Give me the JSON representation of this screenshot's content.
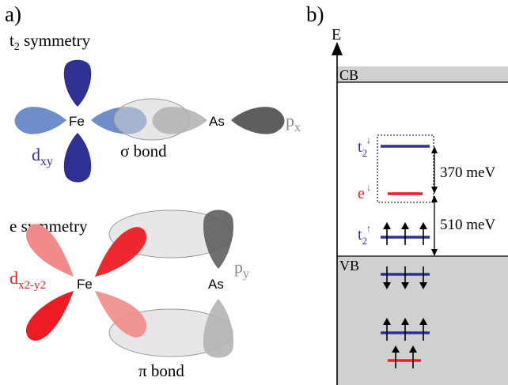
{
  "panel_a": {
    "label": "a)",
    "t2_section": {
      "title_main": "t",
      "title_sub": "2",
      "title_rest": " symmetry",
      "fe_label": "Fe",
      "as_label": "As",
      "px_main": "p",
      "px_sub": "x",
      "dxy_main": "d",
      "dxy_sub": "xy",
      "bond_label": "σ bond"
    },
    "e_section": {
      "title": "e symmetry",
      "fe_label": "Fe",
      "as_label": "As",
      "py_main": "p",
      "py_sub": "y",
      "d_main": "d",
      "d_sub": "x2-y2",
      "bond_label": "π bond"
    }
  },
  "panel_b": {
    "label": "b)",
    "axis_label": "E",
    "cb_label": "CB",
    "vb_label": "VB",
    "t2_down_main": "t",
    "t2_down_sub": "2",
    "t2_down_spin": "↓",
    "e_down_main": "e",
    "e_down_spin": "↓",
    "t2_up_main": "t",
    "t2_up_sub": "2",
    "t2_up_spin": "↑",
    "gap_upper": "370 meV",
    "gap_lower": "510 meV"
  },
  "colors": {
    "dark_blue": "#2e3192",
    "light_blue": "#6d8ec9",
    "red": "#ed1c24",
    "light_red": "#f18a8a",
    "dark_gray": "#5e5e5e",
    "light_gray": "#b4b4b4",
    "band_fill": "#d0d0d0"
  }
}
